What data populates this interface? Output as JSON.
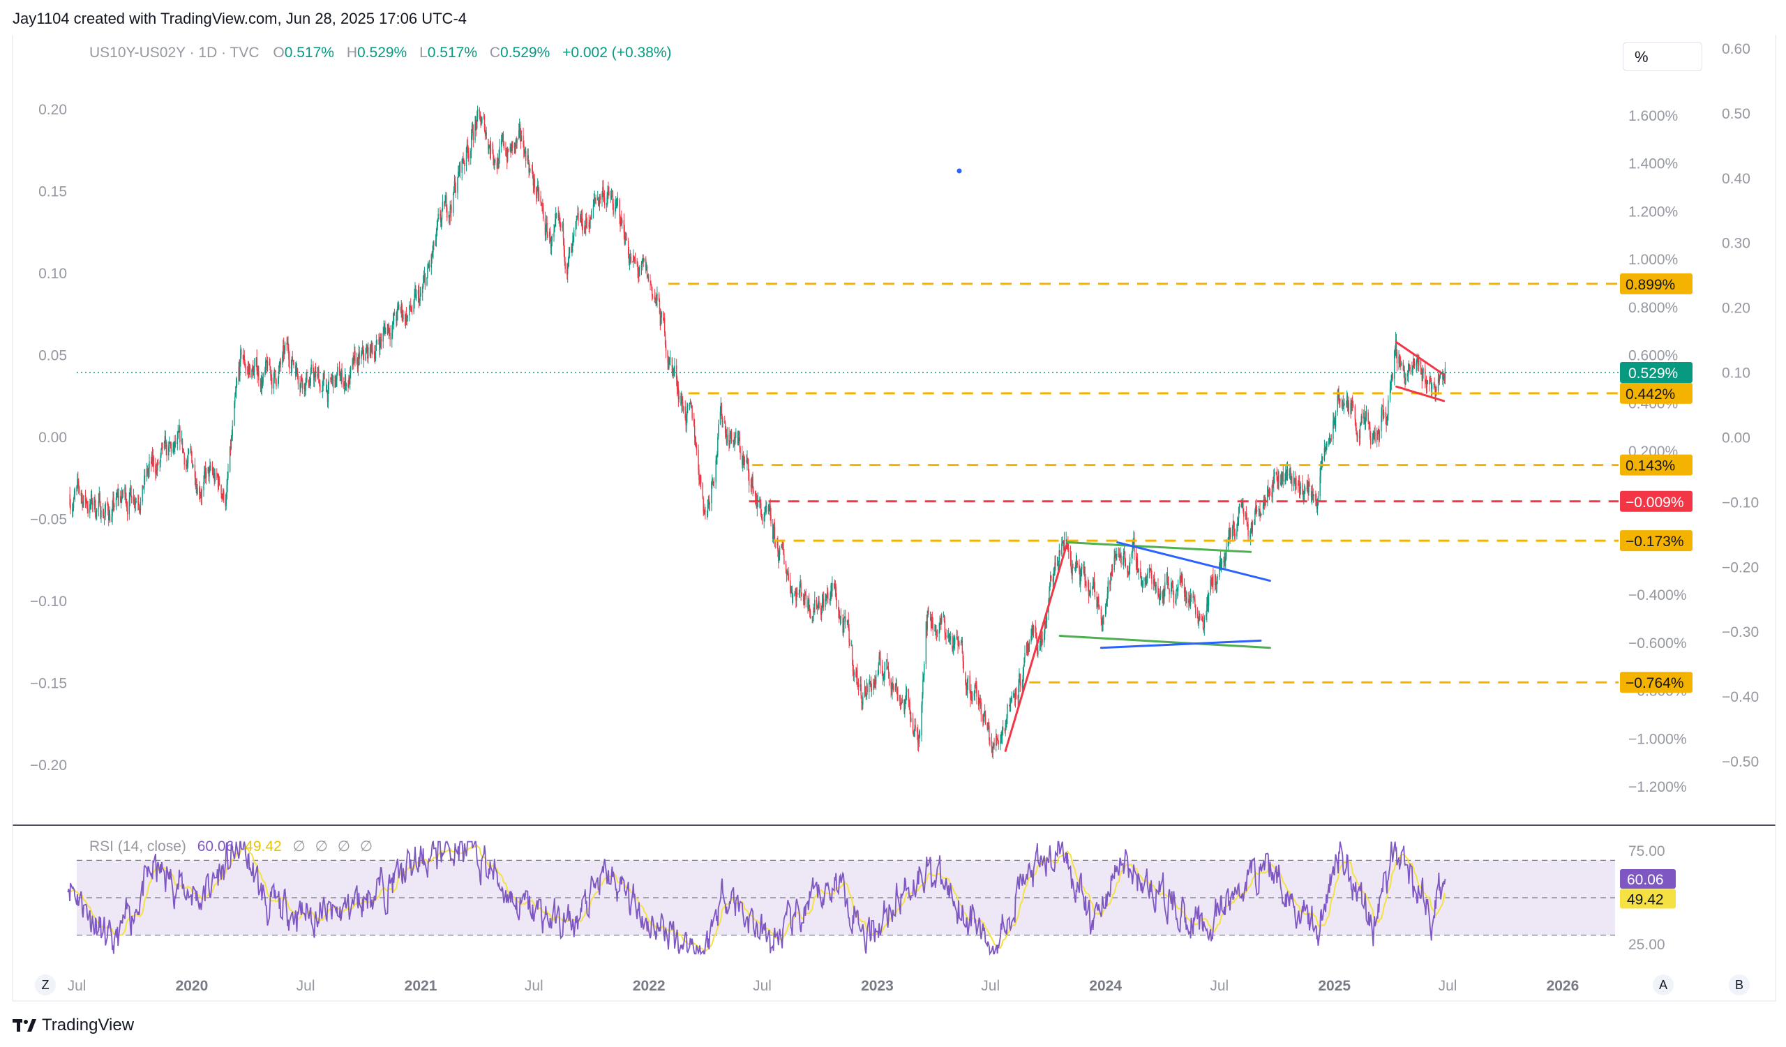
{
  "header": {
    "credit": "Jay1104 created with TradingView.com, Jun 28, 2025 17:06 UTC-4"
  },
  "legend": {
    "symbol": "US10Y-US02Y · 1D · TVC",
    "o_label": "O",
    "o_value": "0.517%",
    "h_label": "H",
    "h_value": "0.529%",
    "l_label": "L",
    "l_value": "0.517%",
    "c_label": "C",
    "c_value": "0.529%",
    "change": "+0.002 (+0.38%)"
  },
  "toolbar": {
    "unit_label": "%"
  },
  "rsi_legend": {
    "label": "RSI (14, close)",
    "rsi_value": "60.06",
    "ma_value": "49.42",
    "placeholders": "∅ ∅ ∅ ∅"
  },
  "footer": {
    "logo_text": "TradingView",
    "z_button": "Z",
    "a_button": "A",
    "b_button": "B"
  },
  "colors": {
    "up": "#089981",
    "down": "#f23645",
    "orange_level": "#f5b301",
    "red_level": "#f23645",
    "green_line": "#4caf50",
    "blue_line": "#2962ff",
    "rsi_line": "#7e57c2",
    "rsi_ma": "#f5e142",
    "rsi_band": "#ede7f6"
  },
  "chart_data": [
    {
      "type": "candlestick",
      "title": "US10Y-US02Y · 1D · TVC",
      "x_ticks": [
        "Jul",
        "2020",
        "Jul",
        "2021",
        "Jul",
        "2022",
        "Jul",
        "2023",
        "Jul",
        "2024",
        "Jul",
        "2025",
        "Jul",
        "2026"
      ],
      "x_tick_dates": [
        "2019-07-01",
        "2020-01-01",
        "2020-07-01",
        "2021-01-01",
        "2021-07-01",
        "2022-01-01",
        "2022-07-01",
        "2023-01-01",
        "2023-07-01",
        "2024-01-01",
        "2024-07-01",
        "2025-01-01",
        "2025-07-01",
        "2026-01-01"
      ],
      "x_range": [
        "2019-06-13",
        "2026-05-25"
      ],
      "left_axis": {
        "ticks": [
          "0.20",
          "0.15",
          "0.10",
          "0.05",
          "0.00",
          "−0.05",
          "−0.10",
          "−0.15",
          "−0.20"
        ],
        "values": [
          0.2,
          0.15,
          0.1,
          0.05,
          0.0,
          -0.05,
          -0.1,
          -0.15,
          -0.2
        ]
      },
      "percent_axis": {
        "ticks": [
          "1.600%",
          "1.400%",
          "1.200%",
          "1.000%",
          "0.800%",
          "0.600%",
          "0.400%",
          "0.200%",
          "−0.400%",
          "−0.600%",
          "−0.800%",
          "−1.000%",
          "−1.200%"
        ],
        "values": [
          1.6,
          1.4,
          1.2,
          1.0,
          0.8,
          0.6,
          0.4,
          0.2,
          -0.4,
          -0.6,
          -0.8,
          -1.0,
          -1.2
        ],
        "range": [
          -1.55,
          2.2
        ]
      },
      "right_axis": {
        "ticks": [
          "0.60",
          "0.50",
          "0.40",
          "0.30",
          "0.20",
          "0.10",
          "0.00",
          "−0.10",
          "−0.20",
          "−0.30",
          "−0.40",
          "−0.50"
        ],
        "values": [
          0.6,
          0.5,
          0.4,
          0.3,
          0.2,
          0.1,
          0.0,
          -0.1,
          -0.2,
          -0.3,
          -0.4,
          -0.5
        ]
      },
      "price_anchors": [
        {
          "date": "2019-06-20",
          "value": 0.02
        },
        {
          "date": "2019-08-27",
          "value": -0.05
        },
        {
          "date": "2019-10-20",
          "value": 0.1
        },
        {
          "date": "2019-12-10",
          "value": 0.18
        },
        {
          "date": "2020-02-25",
          "value": 0.02
        },
        {
          "date": "2020-03-20",
          "value": 0.55
        },
        {
          "date": "2020-05-10",
          "value": 0.5
        },
        {
          "date": "2020-06-05",
          "value": 0.6
        },
        {
          "date": "2020-08-05",
          "value": 0.45
        },
        {
          "date": "2020-10-01",
          "value": 0.55
        },
        {
          "date": "2020-11-15",
          "value": 0.75
        },
        {
          "date": "2020-12-31",
          "value": 0.8
        },
        {
          "date": "2021-02-01",
          "value": 1.1
        },
        {
          "date": "2021-03-29",
          "value": 1.58
        },
        {
          "date": "2021-05-05",
          "value": 1.45
        },
        {
          "date": "2021-06-20",
          "value": 1.45
        },
        {
          "date": "2021-07-20",
          "value": 1.1
        },
        {
          "date": "2021-08-30",
          "value": 1.0
        },
        {
          "date": "2021-10-20",
          "value": 1.3
        },
        {
          "date": "2021-11-25",
          "value": 1.1
        },
        {
          "date": "2021-12-10",
          "value": 0.95
        },
        {
          "date": "2022-01-10",
          "value": 0.85
        },
        {
          "date": "2022-01-31",
          "value": 0.62
        },
        {
          "date": "2022-02-20",
          "value": 0.45
        },
        {
          "date": "2022-03-15",
          "value": 0.25
        },
        {
          "date": "2022-04-02",
          "value": -0.05
        },
        {
          "date": "2022-04-25",
          "value": 0.35
        },
        {
          "date": "2022-05-20",
          "value": 0.25
        },
        {
          "date": "2022-06-15",
          "value": 0.05
        },
        {
          "date": "2022-07-20",
          "value": -0.2
        },
        {
          "date": "2022-08-20",
          "value": -0.35
        },
        {
          "date": "2022-09-15",
          "value": -0.4
        },
        {
          "date": "2022-10-25",
          "value": -0.4
        },
        {
          "date": "2022-12-05",
          "value": -0.8
        },
        {
          "date": "2023-01-20",
          "value": -0.7
        },
        {
          "date": "2023-02-25",
          "value": -0.9
        },
        {
          "date": "2023-03-08",
          "value": -1.05
        },
        {
          "date": "2023-03-20",
          "value": -0.45
        },
        {
          "date": "2023-04-20",
          "value": -0.55
        },
        {
          "date": "2023-05-25",
          "value": -0.7
        },
        {
          "date": "2023-07-05",
          "value": -1.06
        },
        {
          "date": "2023-08-10",
          "value": -0.75
        },
        {
          "date": "2023-09-20",
          "value": -0.6
        },
        {
          "date": "2023-10-25",
          "value": -0.17
        },
        {
          "date": "2023-12-01",
          "value": -0.4
        },
        {
          "date": "2023-12-25",
          "value": -0.45
        },
        {
          "date": "2024-01-25",
          "value": -0.2
        },
        {
          "date": "2024-03-05",
          "value": -0.33
        },
        {
          "date": "2024-04-30",
          "value": -0.35
        },
        {
          "date": "2024-06-05",
          "value": -0.45
        },
        {
          "date": "2024-07-20",
          "value": -0.2
        },
        {
          "date": "2024-08-05",
          "value": -0.02
        },
        {
          "date": "2024-08-20",
          "value": -0.15
        },
        {
          "date": "2024-09-20",
          "value": 0.15
        },
        {
          "date": "2024-10-25",
          "value": 0.1
        },
        {
          "date": "2024-12-01",
          "value": 0.0
        },
        {
          "date": "2025-01-10",
          "value": 0.42
        },
        {
          "date": "2025-02-15",
          "value": 0.3
        },
        {
          "date": "2025-03-05",
          "value": 0.2
        },
        {
          "date": "2025-03-25",
          "value": 0.35
        },
        {
          "date": "2025-04-07",
          "value": 0.62
        },
        {
          "date": "2025-04-25",
          "value": 0.55
        },
        {
          "date": "2025-05-20",
          "value": 0.5
        },
        {
          "date": "2025-06-10",
          "value": 0.48
        },
        {
          "date": "2025-06-27",
          "value": 0.529
        }
      ],
      "horizontal_levels": [
        {
          "value": 0.899,
          "label": "0.899%",
          "color": "orange",
          "style": "dashed"
        },
        {
          "value": 0.442,
          "label": "0.442%",
          "color": "orange",
          "style": "dashed"
        },
        {
          "value": 0.143,
          "label": "0.143%",
          "color": "orange",
          "style": "dashed"
        },
        {
          "value": -0.009,
          "label": "−0.009%",
          "color": "red",
          "style": "dashed"
        },
        {
          "value": -0.173,
          "label": "−0.173%",
          "color": "orange",
          "style": "dashed"
        },
        {
          "value": -0.764,
          "label": "−0.764%",
          "color": "orange",
          "style": "dashed"
        }
      ],
      "last_price": {
        "value": 0.529,
        "label": "0.529%"
      },
      "trendlines": [
        {
          "color": "red",
          "from": {
            "date": "2023-07-25",
            "value": -1.05
          },
          "to": {
            "date": "2023-11-01",
            "value": -0.18
          }
        },
        {
          "color": "green",
          "from": {
            "date": "2023-11-01",
            "value": -0.18
          },
          "to": {
            "date": "2024-08-20",
            "value": -0.22
          }
        },
        {
          "color": "green",
          "from": {
            "date": "2023-10-20",
            "value": -0.57
          },
          "to": {
            "date": "2024-09-20",
            "value": -0.62
          }
        },
        {
          "color": "blue",
          "from": {
            "date": "2024-01-20",
            "value": -0.18
          },
          "to": {
            "date": "2024-09-20",
            "value": -0.34
          }
        },
        {
          "color": "blue",
          "from": {
            "date": "2023-12-25",
            "value": -0.62
          },
          "to": {
            "date": "2024-09-05",
            "value": -0.59
          }
        },
        {
          "color": "red",
          "from": {
            "date": "2025-04-10",
            "value": 0.655
          },
          "to": {
            "date": "2025-06-25",
            "value": 0.52
          }
        },
        {
          "color": "red",
          "from": {
            "date": "2025-04-10",
            "value": 0.47
          },
          "to": {
            "date": "2025-06-25",
            "value": 0.41
          }
        }
      ]
    },
    {
      "type": "line",
      "title": "RSI (14, close)",
      "series": [
        {
          "name": "RSI",
          "last": 60.06
        },
        {
          "name": "RSI-based MA",
          "last": 49.42
        }
      ],
      "y_ticks": [
        "75.00",
        "25.00"
      ],
      "band": [
        30,
        70
      ],
      "midline": 50,
      "ylim": [
        18,
        82
      ],
      "rsi_anchors": [
        {
          "date": "2019-06-15",
          "value": 62
        },
        {
          "date": "2019-08-27",
          "value": 22
        },
        {
          "date": "2019-11-01",
          "value": 65
        },
        {
          "date": "2020-01-15",
          "value": 50
        },
        {
          "date": "2020-03-20",
          "value": 78
        },
        {
          "date": "2020-05-01",
          "value": 45
        },
        {
          "date": "2020-08-15",
          "value": 40
        },
        {
          "date": "2020-11-20",
          "value": 60
        },
        {
          "date": "2021-02-15",
          "value": 78
        },
        {
          "date": "2021-04-10",
          "value": 70
        },
        {
          "date": "2021-06-10",
          "value": 45
        },
        {
          "date": "2021-09-01",
          "value": 35
        },
        {
          "date": "2021-10-25",
          "value": 62
        },
        {
          "date": "2022-01-10",
          "value": 35
        },
        {
          "date": "2022-04-01",
          "value": 22
        },
        {
          "date": "2022-05-01",
          "value": 55
        },
        {
          "date": "2022-07-15",
          "value": 25
        },
        {
          "date": "2022-11-01",
          "value": 60
        },
        {
          "date": "2022-12-15",
          "value": 30
        },
        {
          "date": "2023-03-20",
          "value": 68
        },
        {
          "date": "2023-07-05",
          "value": 24
        },
        {
          "date": "2023-08-15",
          "value": 55
        },
        {
          "date": "2023-10-25",
          "value": 78
        },
        {
          "date": "2023-12-10",
          "value": 35
        },
        {
          "date": "2024-01-25",
          "value": 68
        },
        {
          "date": "2024-06-10",
          "value": 32
        },
        {
          "date": "2024-09-10",
          "value": 70
        },
        {
          "date": "2024-12-05",
          "value": 32
        },
        {
          "date": "2025-01-10",
          "value": 77
        },
        {
          "date": "2025-03-05",
          "value": 35
        },
        {
          "date": "2025-04-08",
          "value": 76
        },
        {
          "date": "2025-06-05",
          "value": 42
        },
        {
          "date": "2025-06-27",
          "value": 60.06
        }
      ]
    }
  ]
}
